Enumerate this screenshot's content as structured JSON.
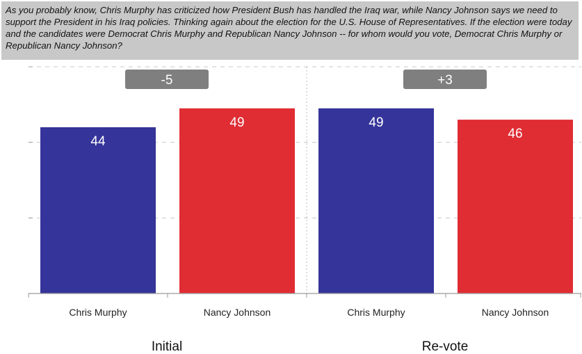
{
  "question": "As you probably know, Chris Murphy has criticized how President Bush has handled the Iraq war, while Nancy Johnson says we need to support the President in his Iraq policies. Thinking again about the election for the U.S. House of Representatives. If the election were today and the candidates were Democrat Chris Murphy and Republican Nancy Johnson -- for whom would you vote, Democrat Chris Murphy or Republican Nancy Johnson?",
  "colors": {
    "democrat": "#35349a",
    "republican": "#e02c33",
    "badge": "#7f7f7f"
  },
  "chart_data": {
    "type": "bar",
    "ylim": [
      0,
      60
    ],
    "grid": true,
    "groups": [
      {
        "label": "Initial",
        "margin": "-5",
        "bars": [
          {
            "category": "Chris Murphy",
            "value": 44,
            "party": "democrat"
          },
          {
            "category": "Nancy Johnson",
            "value": 49,
            "party": "republican"
          }
        ]
      },
      {
        "label": "Re-vote",
        "margin": "+3",
        "bars": [
          {
            "category": "Chris Murphy",
            "value": 49,
            "party": "democrat"
          },
          {
            "category": "Nancy Johnson",
            "value": 46,
            "party": "republican"
          }
        ]
      }
    ]
  }
}
